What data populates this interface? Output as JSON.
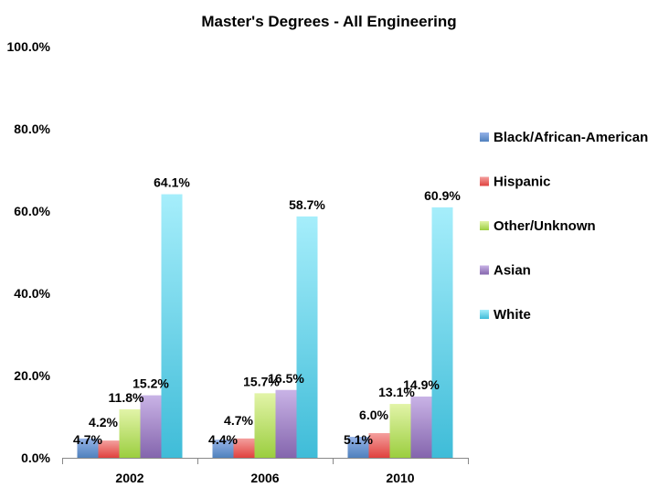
{
  "chart_data": {
    "type": "bar",
    "title": "Master's Degrees - All Engineering",
    "xlabel": "",
    "ylabel": "",
    "ylim": [
      0,
      100
    ],
    "y_ticks": [
      "0.0%",
      "20.0%",
      "40.0%",
      "60.0%",
      "80.0%",
      "100.0%"
    ],
    "categories": [
      "2002",
      "2006",
      "2010"
    ],
    "legend_position": "right",
    "grid": false,
    "series": [
      {
        "name": "Black/African-American",
        "values": [
          4.7,
          4.4,
          5.1
        ],
        "labels": [
          "4.7%",
          "4.4%",
          "5.1%"
        ],
        "color": "#4f81bd",
        "color_light": "#95b3e8"
      },
      {
        "name": "Hispanic",
        "values": [
          4.2,
          4.7,
          6.0
        ],
        "labels": [
          "4.2%",
          "4.7%",
          "6.0%"
        ],
        "color": "#e0413e",
        "color_light": "#f4a09e"
      },
      {
        "name": "Other/Unknown",
        "values": [
          11.8,
          15.7,
          13.1
        ],
        "labels": [
          "11.8%",
          "15.7%",
          "13.1%"
        ],
        "color": "#9bce3f",
        "color_light": "#e2f4a8"
      },
      {
        "name": "Asian",
        "values": [
          15.2,
          16.5,
          14.9
        ],
        "labels": [
          "15.2%",
          "16.5%",
          "14.9%"
        ],
        "color": "#8465ad",
        "color_light": "#c9b3e6"
      },
      {
        "name": "White",
        "values": [
          64.1,
          58.7,
          60.9
        ],
        "labels": [
          "64.1%",
          "58.7%",
          "60.9%"
        ],
        "color": "#3fbcd8",
        "color_light": "#a6eefb"
      }
    ]
  }
}
